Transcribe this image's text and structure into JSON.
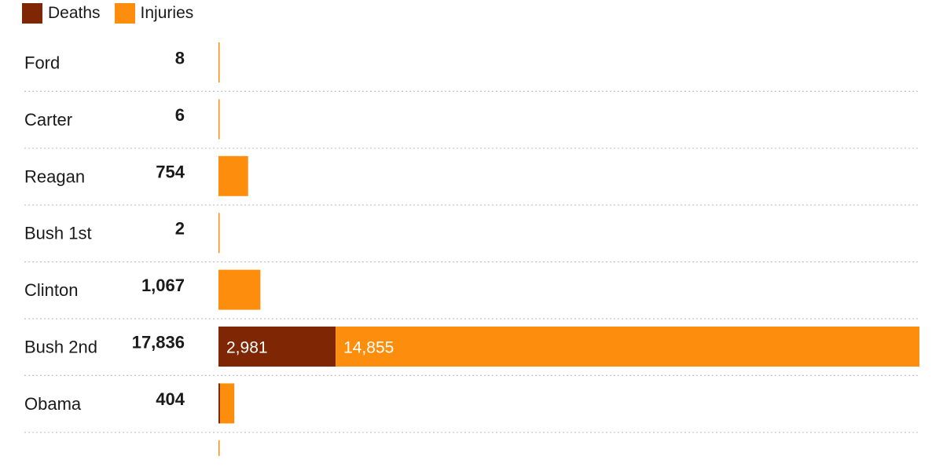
{
  "chart_data": {
    "type": "bar",
    "orientation": "horizontal",
    "stacked": true,
    "categories": [
      "Ford",
      "Carter",
      "Reagan",
      "Bush 1st",
      "Clinton",
      "Bush 2nd",
      "Obama"
    ],
    "totals": [
      "8",
      "6",
      "754",
      "2",
      "1,067",
      "17,836",
      "404"
    ],
    "series": [
      {
        "name": "Deaths",
        "color": "#7f2704",
        "values": [
          0,
          0,
          0,
          0,
          0,
          2981,
          40
        ]
      },
      {
        "name": "Injuries",
        "color": "#fd8d0c",
        "values": [
          8,
          6,
          754,
          2,
          1067,
          14855,
          364
        ]
      }
    ],
    "data_labels": {
      "Bush 2nd": {
        "Deaths": "2,981",
        "Injuries": "14,855"
      }
    },
    "xlim": [
      0,
      17836
    ],
    "legend_position": "top-left",
    "grid": false,
    "row_separators": "dotted"
  }
}
